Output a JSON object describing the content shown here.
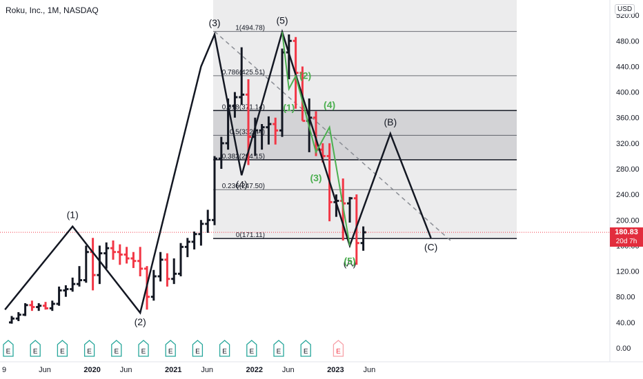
{
  "header": {
    "title": "Roku, Inc., 1M, NASDAQ",
    "currency": "USD"
  },
  "price_tag": {
    "value": "180.83",
    "countdown": "20d 7h",
    "price": 180.83
  },
  "colors": {
    "up": "#131722",
    "down": "#f23645",
    "wave": "#131722",
    "green_wave": "#4caf50",
    "price_line": "#f23645"
  },
  "event_marker": "E",
  "chart_data": {
    "type": "bar",
    "title": "Roku, Inc., 1M, NASDAQ",
    "y_axis": {
      "ticks": [
        "0.00",
        "40.00",
        "80.00",
        "120.00",
        "160.00",
        "200.00",
        "240.00",
        "280.00",
        "320.00",
        "360.00",
        "400.00",
        "440.00",
        "480.00",
        "520.00"
      ],
      "values": [
        0,
        40,
        80,
        120,
        160,
        200,
        240,
        280,
        320,
        360,
        400,
        440,
        480,
        520
      ]
    },
    "x_axis": {
      "labels": [
        "9",
        "Jun",
        "2020",
        "Jun",
        "2021",
        "Jun",
        "2022",
        "Jun",
        "2023",
        "Jun"
      ],
      "months": [
        0,
        5,
        12,
        17,
        24,
        29,
        36,
        41,
        48,
        53
      ]
    },
    "ohlc": [
      [
        0,
        40,
        50,
        38,
        46
      ],
      [
        1,
        46,
        56,
        42,
        52
      ],
      [
        2,
        52,
        70,
        50,
        67
      ],
      [
        3,
        67,
        74,
        58,
        64
      ],
      [
        4,
        64,
        70,
        58,
        66
      ],
      [
        5,
        66,
        72,
        60,
        62
      ],
      [
        6,
        62,
        74,
        58,
        69
      ],
      [
        7,
        69,
        96,
        66,
        90
      ],
      [
        8,
        90,
        98,
        80,
        92
      ],
      [
        9,
        92,
        110,
        88,
        100
      ],
      [
        10,
        100,
        128,
        96,
        106
      ],
      [
        11,
        106,
        160,
        102,
        150
      ],
      [
        12,
        150,
        172,
        90,
        114
      ],
      [
        13,
        114,
        160,
        100,
        148
      ],
      [
        14,
        148,
        165,
        124,
        156
      ],
      [
        15,
        156,
        168,
        138,
        150
      ],
      [
        16,
        150,
        162,
        130,
        146
      ],
      [
        17,
        146,
        158,
        132,
        140
      ],
      [
        18,
        140,
        150,
        125,
        136
      ],
      [
        19,
        136,
        158,
        112,
        124
      ],
      [
        20,
        124,
        128,
        60,
        80
      ],
      [
        21,
        80,
        122,
        74,
        112
      ],
      [
        22,
        112,
        150,
        104,
        138
      ],
      [
        23,
        138,
        148,
        96,
        108
      ],
      [
        24,
        108,
        140,
        100,
        116
      ],
      [
        25,
        116,
        164,
        112,
        158
      ],
      [
        26,
        158,
        172,
        142,
        166
      ],
      [
        27,
        166,
        182,
        154,
        178
      ],
      [
        28,
        178,
        200,
        160,
        194
      ],
      [
        29,
        194,
        216,
        180,
        200
      ],
      [
        30,
        200,
        300,
        192,
        296
      ],
      [
        31,
        296,
        330,
        280,
        320
      ],
      [
        32,
        320,
        390,
        310,
        378
      ],
      [
        33,
        378,
        400,
        360,
        392
      ],
      [
        34,
        392,
        470,
        380,
        396
      ],
      [
        35,
        396,
        420,
        286,
        330
      ],
      [
        36,
        330,
        360,
        300,
        340
      ],
      [
        37,
        340,
        350,
        310,
        345
      ],
      [
        38,
        345,
        362,
        318,
        350
      ],
      [
        39,
        350,
        360,
        318,
        340
      ],
      [
        40,
        340,
        468,
        330,
        462
      ],
      [
        41,
        462,
        490,
        420,
        480
      ],
      [
        42,
        480,
        486,
        374,
        430
      ],
      [
        43,
        430,
        440,
        355,
        355
      ],
      [
        44,
        355,
        390,
        306,
        360
      ],
      [
        45,
        360,
        370,
        300,
        310
      ],
      [
        46,
        310,
        320,
        290,
        300
      ],
      [
        47,
        300,
        320,
        198,
        228
      ],
      [
        48,
        228,
        240,
        205,
        230
      ],
      [
        49,
        230,
        265,
        168,
        226
      ],
      [
        50,
        226,
        236,
        196,
        234
      ],
      [
        51,
        234,
        240,
        130,
        164
      ],
      [
        52,
        164,
        190,
        152,
        180.83
      ]
    ],
    "fib_levels": [
      {
        "ratio": "1",
        "price": 494.78,
        "label": "1(494.78)"
      },
      {
        "ratio": "0.786",
        "price": 425.51,
        "label": "0.786(425.51)"
      },
      {
        "ratio": "0.618",
        "price": 371.14,
        "label": "0.618(371.14)"
      },
      {
        "ratio": "0.5",
        "price": 332.44,
        "label": "0.5(332.44)"
      },
      {
        "ratio": "0.382",
        "price": 294.15,
        "label": "0.382(294.15)"
      },
      {
        "ratio": "0.236",
        "price": 247.5,
        "label": "0.236(247.50)"
      },
      {
        "ratio": "0",
        "price": 171.11,
        "label": "0(171.11)"
      }
    ],
    "main_wave": {
      "points": [
        [
          -1,
          60
        ],
        [
          9,
          190
        ],
        [
          19,
          55
        ],
        [
          28,
          440
        ],
        [
          30,
          490
        ],
        [
          34,
          270
        ],
        [
          40,
          494
        ],
        [
          50,
          160
        ],
        [
          56,
          335
        ],
        [
          62,
          172
        ]
      ]
    },
    "wave_labels": [
      {
        "text": "(1)",
        "x": 9,
        "y": 190,
        "pos": "above",
        "color": "wave"
      },
      {
        "text": "(2)",
        "x": 19,
        "y": 55,
        "pos": "below",
        "color": "wave"
      },
      {
        "text": "(3)",
        "x": 30,
        "y": 490,
        "pos": "above",
        "color": "wave"
      },
      {
        "text": "(4)",
        "x": 34,
        "y": 270,
        "pos": "below",
        "color": "wave"
      },
      {
        "text": "(5)",
        "x": 40,
        "y": 494,
        "pos": "above",
        "color": "wave"
      },
      {
        "text": "(A)",
        "x": 50,
        "y": 160,
        "pos": "below2",
        "color": "wave"
      },
      {
        "text": "(B)",
        "x": 56,
        "y": 335,
        "pos": "above",
        "color": "wave"
      },
      {
        "text": "(C)",
        "x": 62,
        "y": 172,
        "pos": "below",
        "color": "wave"
      }
    ],
    "sub_wave": {
      "points": [
        [
          40,
          494
        ],
        [
          41,
          405
        ],
        [
          42,
          425
        ],
        [
          45,
          306
        ],
        [
          47,
          345
        ],
        [
          50,
          160
        ]
      ]
    },
    "sub_wave_labels": [
      {
        "text": "(2)",
        "x": 42,
        "y": 425,
        "pos": "right"
      },
      {
        "text": "(1)",
        "x": 41,
        "y": 390,
        "pos": "below"
      },
      {
        "text": "(4)",
        "x": 47,
        "y": 362,
        "pos": "above"
      },
      {
        "text": "(3)",
        "x": 45,
        "y": 280,
        "pos": "below"
      },
      {
        "text": "(5)",
        "x": 50,
        "y": 150,
        "pos": "below"
      }
    ],
    "trend_line": {
      "from": [
        30,
        494.78
      ],
      "to": [
        65,
        167
      ]
    }
  }
}
